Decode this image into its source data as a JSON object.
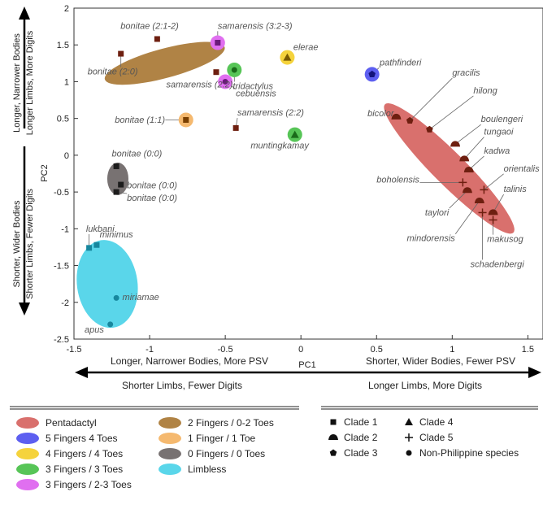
{
  "chart_data": {
    "type": "scatter",
    "xlabel": "PC1",
    "ylabel": "PC2",
    "xlim": [
      -1.5,
      1.6
    ],
    "ylim": [
      -2.5,
      2
    ],
    "xticks": [
      "-1.5",
      "-1",
      "-0.5",
      "0",
      "0.5",
      "1",
      "1.5"
    ],
    "yticks": [
      "2",
      "1.5",
      "1",
      "0.5",
      "0",
      "-0.5",
      "-1",
      "-1.5",
      "-2",
      "-2.5"
    ],
    "colors": {
      "pentadactyl": "#d9706d",
      "five_four": "#5d5ff0",
      "four_four": "#f5d33c",
      "three_three": "#57c557",
      "three_twothree": "#e06ff0",
      "two_zerotwo": "#b08345",
      "one_one": "#f5b96f",
      "zero_zero": "#787272",
      "limbless": "#5ad6ea",
      "clade_marker": "#6e1f10",
      "limbless_marker": "#17879e"
    },
    "ellipses": [
      {
        "name": "limbless",
        "cx": -1.28,
        "cy": -1.75,
        "rx": 0.2,
        "ry": 0.6,
        "angle": -8,
        "color": "limbless"
      },
      {
        "name": "zero-zero",
        "cx": -1.21,
        "cy": -0.32,
        "rx": 0.07,
        "ry": 0.22,
        "angle": 0,
        "color": "zero_zero"
      },
      {
        "name": "two-zerotwo",
        "cx": -0.9,
        "cy": 1.25,
        "rx": 0.41,
        "ry": 0.2,
        "angle": -15,
        "color": "two_zerotwo"
      },
      {
        "name": "pentadactyl",
        "cx": 0.98,
        "cy": -0.18,
        "rx": 0.6,
        "ry": 0.22,
        "angle": 45,
        "color": "pentadactyl"
      }
    ],
    "points": [
      {
        "name": "bonitae (2:0)",
        "x": -1.19,
        "y": 1.38,
        "group": "two_zerotwo",
        "clade": "1"
      },
      {
        "name": "bonitae (2:1-2)",
        "x": -0.95,
        "y": 1.58,
        "group": "two_zerotwo",
        "clade": "1"
      },
      {
        "name": "samarensis (2:2)",
        "x": -0.56,
        "y": 1.13,
        "group": "two_zerotwo",
        "clade": "1"
      },
      {
        "name": "samarensis (2:2)",
        "x": -0.43,
        "y": 0.37,
        "group": "two_zerotwo",
        "clade": "1"
      },
      {
        "name": "samarensis (3:2-3)",
        "x": -0.55,
        "y": 1.53,
        "group": "three_twothree",
        "clade": "1"
      },
      {
        "name": "cebuensis",
        "x": -0.5,
        "y": 1.0,
        "group": "three_twothree",
        "clade": "np"
      },
      {
        "name": "tridactylus",
        "x": -0.44,
        "y": 1.16,
        "group": "three_three",
        "clade": "np"
      },
      {
        "name": "elerae",
        "x": -0.09,
        "y": 1.33,
        "group": "four_four",
        "clade": "4"
      },
      {
        "name": "muntingkamay",
        "x": -0.04,
        "y": 0.28,
        "group": "three_three",
        "clade": "4"
      },
      {
        "name": "bonitae (1:1)",
        "x": -0.76,
        "y": 0.48,
        "group": "one_one",
        "clade": "1"
      },
      {
        "name": "bonitae (0:0)",
        "x": -1.22,
        "y": -0.15,
        "group": "zero_zero",
        "clade": "1"
      },
      {
        "name": "bonitae (0:0)",
        "x": -1.19,
        "y": -0.4,
        "group": "zero_zero",
        "clade": "1"
      },
      {
        "name": "bonitae (0:0)",
        "x": -1.22,
        "y": -0.5,
        "group": "zero_zero",
        "clade": "1"
      },
      {
        "name": "lukbani",
        "x": -1.4,
        "y": -1.26,
        "group": "limbless",
        "clade": "1"
      },
      {
        "name": "minimus",
        "x": -1.35,
        "y": -1.22,
        "group": "limbless",
        "clade": "1"
      },
      {
        "name": "miriamae",
        "x": -1.22,
        "y": -1.94,
        "group": "limbless",
        "clade": "np"
      },
      {
        "name": "apus",
        "x": -1.26,
        "y": -2.3,
        "group": "limbless",
        "clade": "np"
      },
      {
        "name": "pathfinderi",
        "x": 0.47,
        "y": 1.1,
        "group": "five_four",
        "clade": "3"
      },
      {
        "name": "bicolor",
        "x": 0.63,
        "y": 0.52,
        "group": "pentadactyl",
        "clade": "2"
      },
      {
        "name": "gracilis",
        "x": 0.72,
        "y": 0.47,
        "group": "pentadactyl",
        "clade": "3"
      },
      {
        "name": "hilong",
        "x": 0.85,
        "y": 0.35,
        "group": "pentadactyl",
        "clade": "3"
      },
      {
        "name": "boulengeri",
        "x": 1.02,
        "y": 0.15,
        "group": "pentadactyl",
        "clade": "2"
      },
      {
        "name": "tungaoi",
        "x": 1.08,
        "y": -0.05,
        "group": "pentadactyl",
        "clade": "2"
      },
      {
        "name": "kadwa",
        "x": 1.11,
        "y": -0.2,
        "group": "pentadactyl",
        "clade": "2"
      },
      {
        "name": "boholensis",
        "x": 1.07,
        "y": -0.37,
        "group": "pentadactyl",
        "clade": "5"
      },
      {
        "name": "orientalis",
        "x": 1.21,
        "y": -0.47,
        "group": "pentadactyl",
        "clade": "5"
      },
      {
        "name": "taylori",
        "x": 1.1,
        "y": -0.48,
        "group": "pentadactyl",
        "clade": "2"
      },
      {
        "name": "talinis",
        "x": 1.27,
        "y": -0.78,
        "group": "pentadactyl",
        "clade": "2"
      },
      {
        "name": "mindorensis",
        "x": 1.18,
        "y": -0.62,
        "group": "pentadactyl",
        "clade": "2"
      },
      {
        "name": "schadenbergi",
        "x": 1.2,
        "y": -0.78,
        "group": "pentadactyl",
        "clade": "5"
      },
      {
        "name": "makusog",
        "x": 1.27,
        "y": -0.88,
        "group": "pentadactyl",
        "clade": "5"
      }
    ],
    "labels": [
      {
        "text": "bonitae (2:1-2)",
        "x": -1.0,
        "y": 1.72,
        "anchor": "middle",
        "point": 1
      },
      {
        "text": "bonitae (2:0)",
        "x": -1.41,
        "y": 1.1,
        "anchor": "start",
        "point": 0
      },
      {
        "text": "samarensis (2:2)",
        "x": -0.89,
        "y": 0.92,
        "anchor": "start",
        "point": 2
      },
      {
        "text": "samarensis (3:2-3)",
        "x": -0.55,
        "y": 1.72,
        "anchor": "start",
        "point": 4
      },
      {
        "text": "elerae",
        "x": -0.05,
        "y": 1.43,
        "anchor": "start",
        "point": 7
      },
      {
        "text": "tridactylus",
        "x": -0.45,
        "y": 0.9,
        "anchor": "start",
        "point": 6
      },
      {
        "text": "cebuensis",
        "x": -0.43,
        "y": 0.8,
        "anchor": "start",
        "point": 5
      },
      {
        "text": "samarensis (2:2)",
        "x": -0.42,
        "y": 0.54,
        "anchor": "start",
        "point": 3
      },
      {
        "text": "muntingkamay",
        "x": -0.14,
        "y": 0.09,
        "anchor": "middle",
        "point": 8
      },
      {
        "text": "bonitae (1:1)",
        "x": -1.23,
        "y": 0.44,
        "anchor": "start",
        "point": 9
      },
      {
        "text": "bonitae (0:0)",
        "x": -1.25,
        "y": -0.02,
        "anchor": "start",
        "point": 10
      },
      {
        "text": "bonitae (0:0)",
        "x": -1.15,
        "y": -0.45,
        "anchor": "start",
        "point": 11
      },
      {
        "text": "bonitae (0:0)",
        "x": -1.15,
        "y": -0.62,
        "anchor": "start",
        "point": 12
      },
      {
        "text": "lukbani",
        "x": -1.42,
        "y": -1.04,
        "anchor": "start",
        "point": 13
      },
      {
        "text": "minimus",
        "x": -1.33,
        "y": -1.12,
        "anchor": "start",
        "point": 14
      },
      {
        "text": "miriamae",
        "x": -1.18,
        "y": -1.97,
        "anchor": "start",
        "point": 15
      },
      {
        "text": "apus",
        "x": -1.43,
        "y": -2.41,
        "anchor": "start",
        "point": 16
      },
      {
        "text": "pathfinderi",
        "x": 0.52,
        "y": 1.22,
        "anchor": "start",
        "point": 17
      },
      {
        "text": "gracilis",
        "x": 1.0,
        "y": 1.08,
        "anchor": "start",
        "point": 19
      },
      {
        "text": "bicolor",
        "x": 0.44,
        "y": 0.53,
        "anchor": "start",
        "point": 18
      },
      {
        "text": "hilong",
        "x": 1.14,
        "y": 0.84,
        "anchor": "start",
        "point": 20
      },
      {
        "text": "boulengeri",
        "x": 1.19,
        "y": 0.45,
        "anchor": "start",
        "point": 21
      },
      {
        "text": "tungaoi",
        "x": 1.21,
        "y": 0.28,
        "anchor": "start",
        "point": 22
      },
      {
        "text": "kadwa",
        "x": 1.21,
        "y": 0.02,
        "anchor": "start",
        "point": 23
      },
      {
        "text": "boholensis",
        "x": 0.5,
        "y": -0.37,
        "anchor": "start",
        "point": 24
      },
      {
        "text": "orientalis",
        "x": 1.34,
        "y": -0.22,
        "anchor": "start",
        "point": 25
      },
      {
        "text": "taylori",
        "x": 0.82,
        "y": -0.82,
        "anchor": "start",
        "point": 26
      },
      {
        "text": "talinis",
        "x": 1.34,
        "y": -0.5,
        "anchor": "start",
        "point": 27
      },
      {
        "text": "mindorensis",
        "x": 0.7,
        "y": -1.17,
        "anchor": "start",
        "point": 28
      },
      {
        "text": "makusog",
        "x": 1.23,
        "y": -1.18,
        "anchor": "start",
        "point": 30
      },
      {
        "text": "schadenbergi",
        "x": 1.12,
        "y": -1.52,
        "anchor": "start",
        "point": 29
      }
    ]
  },
  "side_label": {
    "top_line1": "Longer, Narrower Bodies",
    "top_line2": "Longer Limbs, More Digits",
    "bottom_line1": "Shorter, Wider Bodies",
    "bottom_line2": "Shorter Limbs, Fewer Digits"
  },
  "bottom_arrow": {
    "left_top": "Longer, Narrower Bodies, More PSV",
    "left_bottom": "Shorter Limbs, Fewer Digits",
    "right_top": "Shorter, Wider Bodies, Fewer PSV",
    "right_bottom": "Longer Limbs, More Digits"
  },
  "legend_colors": {
    "col1": [
      {
        "label": "Pentadactyl",
        "color": "pentadactyl"
      },
      {
        "label": "5 Fingers 4 Toes",
        "color": "five_four"
      },
      {
        "label": "4 Fingers / 4 Toes",
        "color": "four_four"
      },
      {
        "label": "3 Fingers / 3 Toes",
        "color": "three_three"
      },
      {
        "label": "3 Fingers / 2-3 Toes",
        "color": "three_twothree"
      }
    ],
    "col2": [
      {
        "label": "2 Fingers / 0-2 Toes",
        "color": "two_zerotwo"
      },
      {
        "label": "1 Finger / 1 Toe",
        "color": "one_one"
      },
      {
        "label": "0 Fingers / 0 Toes",
        "color": "zero_zero"
      },
      {
        "label": "Limbless",
        "color": "limbless"
      }
    ]
  },
  "legend_shapes": {
    "col1": [
      {
        "label": "Clade 1",
        "shape": "square"
      },
      {
        "label": "Clade 2",
        "shape": "dome"
      },
      {
        "label": "Clade 3",
        "shape": "pentagon"
      }
    ],
    "col2": [
      {
        "label": "Clade 4",
        "shape": "triangle"
      },
      {
        "label": "Clade 5",
        "shape": "plus"
      },
      {
        "label": "Non-Philippine species",
        "shape": "circle"
      }
    ]
  }
}
